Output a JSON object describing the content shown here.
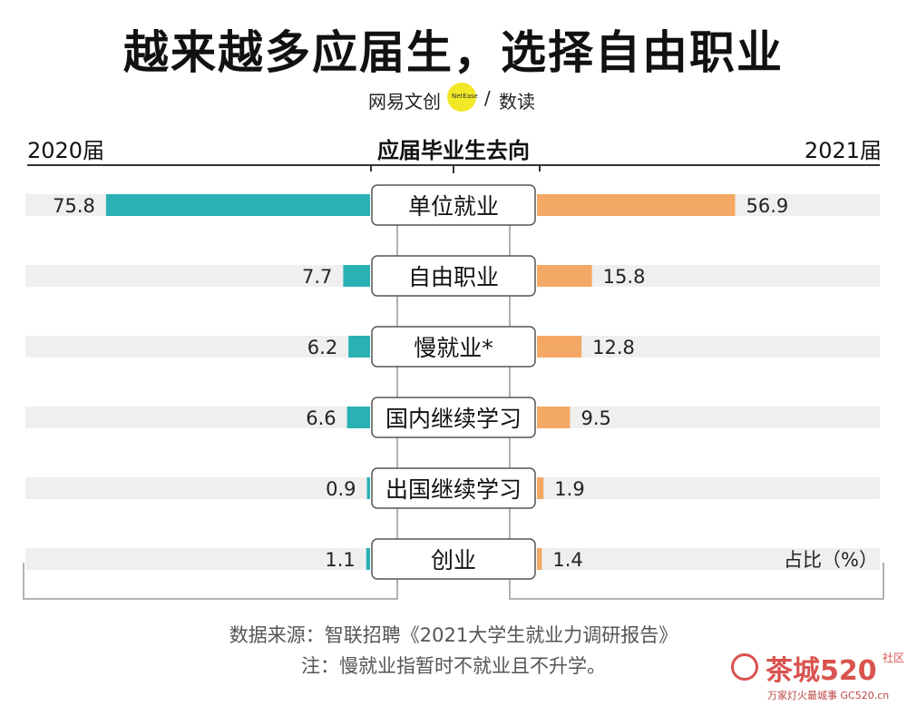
{
  "title": "越来越多应届生，选择自由职业",
  "brand": {
    "left": "网易文创",
    "badge": "NetEase",
    "sep": "/",
    "right": "数读"
  },
  "headers": {
    "left": "2020届",
    "center": "应届毕业生去向",
    "right": "2021届"
  },
  "colors": {
    "left_bar": "#29b1b4",
    "right_bar": "#f4a865",
    "track": "#efefef",
    "label_border": "#555555"
  },
  "unit_label": "占比（%）",
  "footnotes": {
    "source": "数据来源：智联招聘《2021大学生就业力调研报告》",
    "note": "注：慢就业指暂时不就业且不升学。"
  },
  "watermark": {
    "text": "茶城520",
    "side": "社区",
    "url": "万家灯火最城事 GC520.cn"
  },
  "chart_data": {
    "type": "bar",
    "title": "越来越多应届生，选择自由职业",
    "subtitle": "应届毕业生去向",
    "categories": [
      "单位就业",
      "自由职业",
      "慢就业*",
      "国内继续学习",
      "出国继续学习",
      "创业"
    ],
    "series": [
      {
        "name": "2020届",
        "values": [
          75.8,
          7.7,
          6.2,
          6.6,
          0.9,
          1.1
        ]
      },
      {
        "name": "2021届",
        "values": [
          56.9,
          15.8,
          12.8,
          9.5,
          1.9,
          1.4
        ]
      }
    ],
    "value_labels_left": [
      "75.8",
      "7.7",
      "6.2",
      "6.6",
      "0.9",
      "1.1"
    ],
    "value_labels_right": [
      "56.9",
      "15.8",
      "12.8",
      "9.5",
      "1.9",
      "1.4"
    ],
    "ylabel": "占比（%）",
    "xlim": [
      0,
      100
    ],
    "legend": "top"
  }
}
